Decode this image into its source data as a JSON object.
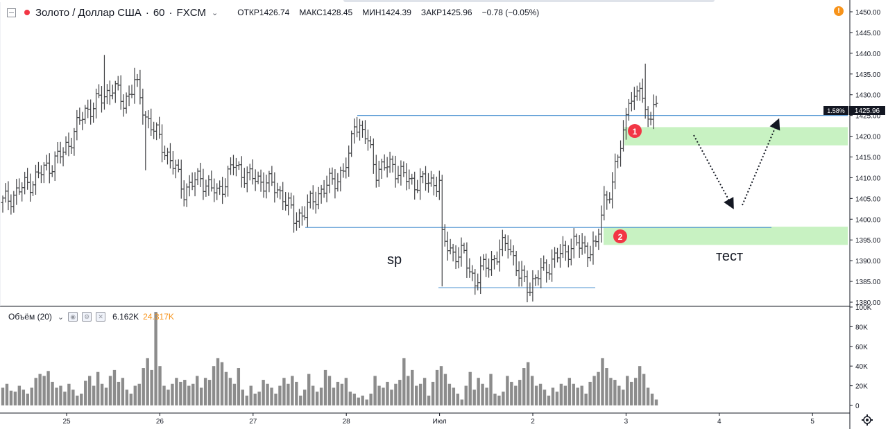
{
  "header": {
    "symbol": "Золото / Доллар США",
    "separator": "·",
    "interval": "60",
    "exchange": "FXCM",
    "open_label": "ОТКР",
    "open": "1426.74",
    "high_label": "МАКС",
    "high": "1428.45",
    "low_label": "МИН",
    "low": "1424.39",
    "close_label": "ЗАКР",
    "close": "1425.96",
    "change": "−0.78 (−0.05%)"
  },
  "volume_header": {
    "label": "Объём (20)",
    "value1": "6.162K",
    "value2": "24.317K"
  },
  "colors": {
    "bars": "#3f4043",
    "volume": "#8c8c8c",
    "level_line": "#5b9bd5",
    "zone": "#c8f2c2",
    "marker": "#f23645",
    "accent_orange": "#f7931a",
    "price_label_bg": "#131722"
  },
  "icons": [
    "collapse-icon",
    "status-dot-icon",
    "chevron-down-icon",
    "warning-icon",
    "eye-icon",
    "settings-icon",
    "close-icon",
    "gear-icon"
  ],
  "chart_data": {
    "type": "ohlc",
    "price_axis": {
      "ticks": [
        "1450.00",
        "1445.00",
        "1440.00",
        "1435.00",
        "1430.00",
        "1425.00",
        "1420.00",
        "1415.00",
        "1410.00",
        "1405.00",
        "1400.00",
        "1395.00",
        "1390.00",
        "1385.00",
        "1380.00"
      ],
      "ylim": [
        1380,
        1450
      ]
    },
    "last_price_label": "1425.96",
    "percent_label": "1.58%",
    "volume_axis": {
      "ticks": [
        "100K",
        "80K",
        "60K",
        "40K",
        "20K",
        "0"
      ],
      "ylim": [
        0,
        100
      ]
    },
    "x_axis": {
      "ticks": [
        "25",
        "26",
        "27",
        "28",
        "Июл",
        "2",
        "3",
        "4",
        "5"
      ]
    },
    "annotations": {
      "text_sp": "sp",
      "text_test": "тест",
      "marker_1": "1",
      "marker_2": "2"
    },
    "levels": [
      {
        "name": "upper-resistance",
        "price": 1425.0
      },
      {
        "name": "middle-level",
        "price": 1398.0
      },
      {
        "name": "lower-support",
        "price": 1383.5
      }
    ],
    "zones": [
      {
        "name": "zone-1",
        "from": 1417.8,
        "to": 1422.2
      },
      {
        "name": "zone-2",
        "from": 1393.8,
        "to": 1398.2
      }
    ],
    "key_prices": [
      {
        "x": 0,
        "p": 1404
      },
      {
        "x": 12,
        "p": 1410
      },
      {
        "x": 22,
        "p": 1416
      },
      {
        "x": 30,
        "p": 1426
      },
      {
        "x": 36,
        "p": 1429
      },
      {
        "x": 40,
        "p": 1432
      },
      {
        "x": 44,
        "p": 1428
      },
      {
        "x": 48,
        "p": 1433
      },
      {
        "x": 52,
        "p": 1425
      },
      {
        "x": 58,
        "p": 1418
      },
      {
        "x": 62,
        "p": 1413
      },
      {
        "x": 66,
        "p": 1407
      },
      {
        "x": 72,
        "p": 1410
      },
      {
        "x": 78,
        "p": 1406
      },
      {
        "x": 84,
        "p": 1413
      },
      {
        "x": 90,
        "p": 1410
      },
      {
        "x": 96,
        "p": 1409
      },
      {
        "x": 102,
        "p": 1406
      },
      {
        "x": 106,
        "p": 1400
      },
      {
        "x": 110,
        "p": 1402
      },
      {
        "x": 116,
        "p": 1407
      },
      {
        "x": 122,
        "p": 1410
      },
      {
        "x": 126,
        "p": 1414
      },
      {
        "x": 128,
        "p": 1424
      },
      {
        "x": 132,
        "p": 1420
      },
      {
        "x": 136,
        "p": 1412
      },
      {
        "x": 142,
        "p": 1413
      },
      {
        "x": 148,
        "p": 1409
      },
      {
        "x": 156,
        "p": 1409
      },
      {
        "x": 159,
        "p": 1409
      },
      {
        "x": 160,
        "p": 1395
      },
      {
        "x": 164,
        "p": 1392
      },
      {
        "x": 168,
        "p": 1391
      },
      {
        "x": 172,
        "p": 1385
      },
      {
        "x": 176,
        "p": 1389
      },
      {
        "x": 180,
        "p": 1391
      },
      {
        "x": 184,
        "p": 1395
      },
      {
        "x": 188,
        "p": 1386
      },
      {
        "x": 192,
        "p": 1384
      },
      {
        "x": 196,
        "p": 1387
      },
      {
        "x": 200,
        "p": 1390
      },
      {
        "x": 204,
        "p": 1392
      },
      {
        "x": 208,
        "p": 1394
      },
      {
        "x": 212,
        "p": 1393
      },
      {
        "x": 216,
        "p": 1393
      },
      {
        "x": 219,
        "p": 1405
      },
      {
        "x": 222,
        "p": 1408
      },
      {
        "x": 224,
        "p": 1415
      },
      {
        "x": 226,
        "p": 1421
      },
      {
        "x": 228,
        "p": 1430
      },
      {
        "x": 230,
        "p": 1427
      },
      {
        "x": 232,
        "p": 1433
      },
      {
        "x": 234,
        "p": 1426
      },
      {
        "x": 236,
        "p": 1425
      },
      {
        "x": 238,
        "p": 1426
      }
    ],
    "volume_values": [
      18,
      22,
      15,
      14,
      20,
      16,
      12,
      18,
      28,
      32,
      30,
      35,
      24,
      18,
      20,
      14,
      22,
      16,
      10,
      12,
      25,
      30,
      20,
      34,
      22,
      18,
      30,
      36,
      24,
      28,
      16,
      12,
      20,
      22,
      38,
      48,
      36,
      95,
      40,
      20,
      16,
      22,
      28,
      24,
      26,
      20,
      22,
      30,
      18,
      28,
      26,
      40,
      48,
      44,
      34,
      28,
      22,
      38,
      16,
      10,
      20,
      12,
      14,
      26,
      22,
      18,
      12,
      20,
      28,
      22,
      30,
      24,
      10,
      16,
      32,
      20,
      14,
      18,
      36,
      30,
      18,
      24,
      22,
      28,
      14,
      12,
      8,
      10,
      6,
      12,
      30,
      20,
      18,
      24,
      16,
      22,
      26,
      48,
      30,
      36,
      20,
      22,
      28,
      10,
      24,
      36,
      40,
      32,
      22,
      18,
      12,
      6,
      20,
      34,
      16,
      28,
      22,
      18,
      32,
      12,
      10,
      14,
      30,
      24,
      20,
      26,
      38,
      44,
      30,
      20,
      22,
      16,
      10,
      18,
      14,
      22,
      20,
      28,
      22,
      18,
      20,
      12,
      24,
      30,
      34,
      48,
      38,
      28,
      26,
      20,
      16,
      30,
      24,
      28,
      40,
      32,
      18,
      12,
      6
    ]
  }
}
